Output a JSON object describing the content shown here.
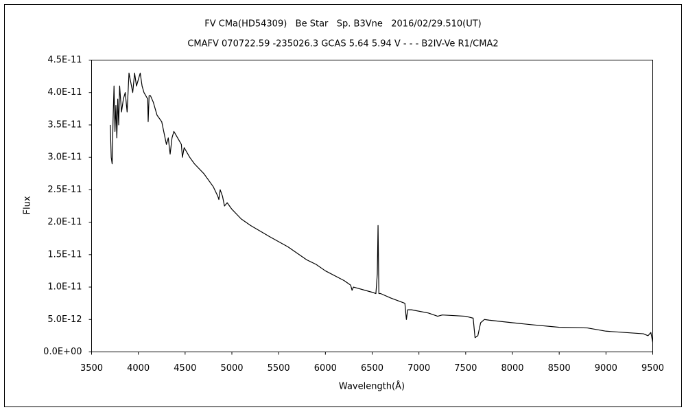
{
  "chart_data": {
    "type": "line",
    "title": "FV CMa(HD54309)   Be Star   Sp. B3Vne   2016/02/29.510(UT)",
    "subtitle": "CMAFV 070722.59 -235026.3 GCAS 5.64 5.94 V - - - B2IV-Ve R1/CMA2",
    "x_label": "Wavelength(Å)",
    "y_label": "Flux",
    "color": "#000000",
    "xlim": [
      3500,
      9500
    ],
    "xticks": [
      3500,
      4000,
      4500,
      5000,
      5500,
      6000,
      6500,
      7000,
      7500,
      8000,
      8500,
      9000,
      9500
    ],
    "ylim": [
      0,
      4.5e-11
    ],
    "yticks": [
      {
        "value": 0,
        "label": "0.0E+00"
      },
      {
        "value": 5e-12,
        "label": "5.0E-12"
      },
      {
        "value": 1e-11,
        "label": "1.0E-11"
      },
      {
        "value": 1.5e-11,
        "label": "1.5E-11"
      },
      {
        "value": 2e-11,
        "label": "2.0E-11"
      },
      {
        "value": 2.5e-11,
        "label": "2.5E-11"
      },
      {
        "value": 3e-11,
        "label": "3.0E-11"
      },
      {
        "value": 3.5e-11,
        "label": "3.5E-11"
      },
      {
        "value": 4e-11,
        "label": "4.0E-11"
      },
      {
        "value": 4.5e-11,
        "label": "4.5E-11"
      }
    ],
    "x": [
      3700,
      3710,
      3720,
      3730,
      3740,
      3750,
      3760,
      3770,
      3780,
      3790,
      3800,
      3820,
      3840,
      3860,
      3880,
      3900,
      3920,
      3940,
      3960,
      3980,
      4000,
      4020,
      4040,
      4060,
      4080,
      4100,
      4105,
      4115,
      4130,
      4160,
      4200,
      4250,
      4300,
      4320,
      4340,
      4360,
      4380,
      4420,
      4460,
      4471,
      4490,
      4550,
      4600,
      4700,
      4800,
      4850,
      4861,
      4875,
      4900,
      4921,
      4950,
      5000,
      5100,
      5200,
      5400,
      5600,
      5800,
      5900,
      6000,
      6200,
      6270,
      6285,
      6300,
      6500,
      6540,
      6555,
      6563,
      6572,
      6590,
      6700,
      6850,
      6866,
      6880,
      6920,
      7100,
      7180,
      7200,
      7250,
      7500,
      7580,
      7600,
      7630,
      7660,
      7700,
      7750,
      8000,
      8200,
      8500,
      8800,
      9000,
      9200,
      9400,
      9450,
      9480,
      9500
    ],
    "values": [
      3.5e-11,
      3e-11,
      2.9e-11,
      3.6e-11,
      4.1e-11,
      3.4e-11,
      3.8e-11,
      3.3e-11,
      3.9e-11,
      3.5e-11,
      4.1e-11,
      3.7e-11,
      3.9e-11,
      4e-11,
      3.7e-11,
      4.3e-11,
      4.15e-11,
      4e-11,
      4.3e-11,
      4.1e-11,
      4.2e-11,
      4.3e-11,
      4.1e-11,
      4e-11,
      3.95e-11,
      3.9e-11,
      3.55e-11,
      3.95e-11,
      3.95e-11,
      3.85e-11,
      3.65e-11,
      3.55e-11,
      3.2e-11,
      3.3e-11,
      3.05e-11,
      3.3e-11,
      3.4e-11,
      3.3e-11,
      3.2e-11,
      3e-11,
      3.15e-11,
      3e-11,
      2.9e-11,
      2.75e-11,
      2.55e-11,
      2.4e-11,
      2.35e-11,
      2.5e-11,
      2.4e-11,
      2.25e-11,
      2.3e-11,
      2.2e-11,
      2.05e-11,
      1.95e-11,
      1.78e-11,
      1.62e-11,
      1.42e-11,
      1.35e-11,
      1.25e-11,
      1.1e-11,
      1.03e-11,
      9.5e-12,
      1e-11,
      9.2e-12,
      9e-12,
      1.2e-11,
      1.95e-11,
      9e-12,
      9e-12,
      8.3e-12,
      7.5e-12,
      5e-12,
      6.5e-12,
      6.5e-12,
      6e-12,
      5.6e-12,
      5.5e-12,
      5.7e-12,
      5.5e-12,
      5.2e-12,
      2.2e-12,
      2.5e-12,
      4.5e-12,
      5e-12,
      4.9e-12,
      4.5e-12,
      4.2e-12,
      3.8e-12,
      3.7e-12,
      3.2e-12,
      3e-12,
      2.8e-12,
      2.5e-12,
      3e-12,
      1.5e-12
    ]
  }
}
